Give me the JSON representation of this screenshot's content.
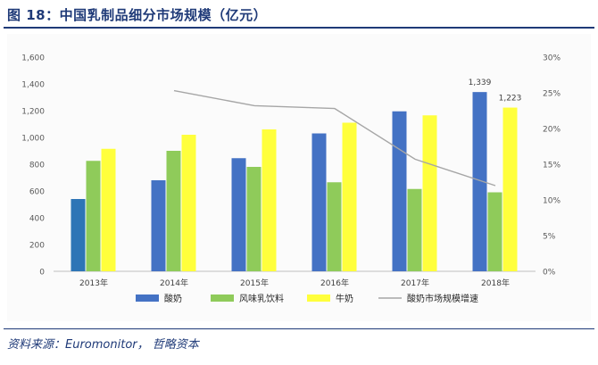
{
  "figure": {
    "title": "图 18：中国乳制品细分市场规模（亿元）",
    "source": "资料来源：Euromonitor，  哲略资本"
  },
  "colors": {
    "accent": "#1f3a78",
    "yogurt": "#4472C4",
    "flavored_milk": "#8FCB5A",
    "milk": "#FFFF3C",
    "growth_line": "#A6A6A6"
  },
  "chart_data": {
    "type": "bar",
    "title": "",
    "xlabel": "",
    "ylabel": "",
    "categories": [
      "2013年",
      "2014年",
      "2015年",
      "2016年",
      "2017年",
      "2018年"
    ],
    "series": [
      {
        "name": "酸奶",
        "kind": "bar",
        "axis": "left",
        "color": "#4472C4",
        "values": [
          540,
          680,
          845,
          1030,
          1195,
          1339
        ]
      },
      {
        "name": "风味乳饮料",
        "kind": "bar",
        "axis": "left",
        "color": "#8FCB5A",
        "values": [
          825,
          900,
          780,
          665,
          615,
          590
        ]
      },
      {
        "name": "牛奶",
        "kind": "bar",
        "axis": "left",
        "color": "#FFFF3C",
        "values": [
          915,
          1020,
          1060,
          1110,
          1165,
          1223
        ]
      },
      {
        "name": "酸奶市场规模增速",
        "kind": "line",
        "axis": "right",
        "color": "#A6A6A6",
        "values": [
          null,
          25.3,
          23.2,
          22.8,
          15.7,
          12.0
        ]
      }
    ],
    "data_labels": [
      {
        "category": "2018年",
        "series": "酸奶",
        "text": "1,339"
      },
      {
        "category": "2018年",
        "series": "牛奶",
        "text": "1,223"
      }
    ],
    "y_left": {
      "ylim": [
        0,
        1600
      ],
      "ticks": [
        0,
        200,
        400,
        600,
        800,
        1000,
        1200,
        1400,
        1600
      ],
      "tick_labels": [
        "0",
        "200",
        "400",
        "600",
        "800",
        "1,000",
        "1,200",
        "1,400",
        "1,600"
      ]
    },
    "y_right": {
      "ylim": [
        0,
        30
      ],
      "ticks": [
        0,
        5,
        10,
        15,
        20,
        25,
        30
      ],
      "tick_labels": [
        "0%",
        "5%",
        "10%",
        "15%",
        "20%",
        "25%",
        "30%"
      ]
    },
    "grid": false,
    "legend_position": "bottom"
  }
}
